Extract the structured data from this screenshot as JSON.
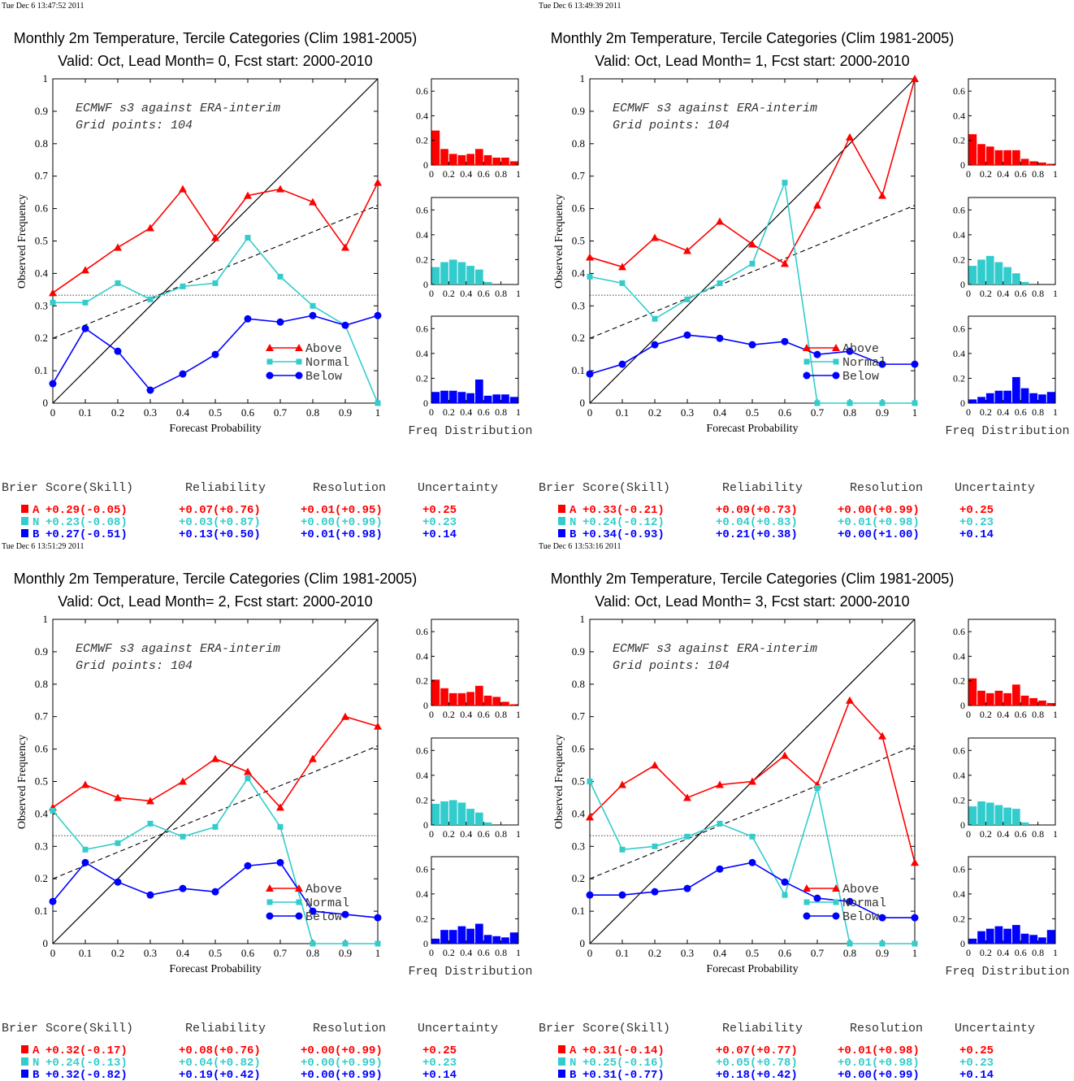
{
  "colors": {
    "above": "#ff0000",
    "normal": "#33cccc",
    "below": "#0000ff"
  },
  "common": {
    "xlabel": "Forecast Probability",
    "ylabel": "Observed Frequency",
    "note_line1": "ECMWF s3 against ERA-interim",
    "note_line2": "Grid points:  104",
    "freq_label": "Freq Distribution",
    "legend": [
      "Above",
      "Normal",
      "Below"
    ],
    "score_headers": [
      "Brier Score(Skill)",
      "Reliability",
      "Resolution",
      "Uncertainty"
    ],
    "reliability_ticks": [
      "0",
      "0.1",
      "0.2",
      "0.3",
      "0.4",
      "0.5",
      "0.6",
      "0.7",
      "0.8",
      "0.9",
      "1"
    ],
    "hist_yticks": [
      "0",
      "0.2",
      "0.4",
      "0.6"
    ],
    "hist_xticks": [
      "0",
      "0.2",
      "0.4",
      "0.6",
      "0.8",
      "1"
    ]
  },
  "panels": [
    {
      "timestamp": "Tue Dec  6 13:47:52 2011",
      "title1": "Monthly 2m Temperature, Tercile Categories (Clim 1981-2005)",
      "title2": "Valid: Oct, Lead Month= 0, Fcst start: 2000-2010",
      "scores": [
        {
          "cat": "A",
          "brier": "+0.29(-0.05)",
          "rel": "+0.07(+0.76)",
          "res": "+0.01(+0.95)",
          "unc": "+0.25"
        },
        {
          "cat": "N",
          "brier": "+0.23(-0.08)",
          "rel": "+0.03(+0.87)",
          "res": "+0.00(+0.99)",
          "unc": "+0.23"
        },
        {
          "cat": "B",
          "brier": "+0.27(-0.51)",
          "rel": "+0.13(+0.50)",
          "res": "+0.01(+0.98)",
          "unc": "+0.14"
        }
      ]
    },
    {
      "timestamp": "Tue Dec  6 13:49:39 2011",
      "title1": "Monthly 2m Temperature, Tercile Categories (Clim 1981-2005)",
      "title2": "Valid: Oct, Lead Month= 1, Fcst start: 2000-2010",
      "scores": [
        {
          "cat": "A",
          "brier": "+0.33(-0.21)",
          "rel": "+0.09(+0.73)",
          "res": "+0.00(+0.99)",
          "unc": "+0.25"
        },
        {
          "cat": "N",
          "brier": "+0.24(-0.12)",
          "rel": "+0.04(+0.83)",
          "res": "+0.01(+0.98)",
          "unc": "+0.23"
        },
        {
          "cat": "B",
          "brier": "+0.34(-0.93)",
          "rel": "+0.21(+0.38)",
          "res": "+0.00(+1.00)",
          "unc": "+0.14"
        }
      ]
    },
    {
      "timestamp": "Tue Dec  6 13:51:29 2011",
      "title1": "Monthly 2m Temperature, Tercile Categories (Clim 1981-2005)",
      "title2": "Valid: Oct, Lead Month= 2, Fcst start: 2000-2010",
      "scores": [
        {
          "cat": "A",
          "brier": "+0.32(-0.17)",
          "rel": "+0.08(+0.76)",
          "res": "+0.00(+0.99)",
          "unc": "+0.25"
        },
        {
          "cat": "N",
          "brier": "+0.24(-0.13)",
          "rel": "+0.04(+0.82)",
          "res": "+0.00(+0.99)",
          "unc": "+0.23"
        },
        {
          "cat": "B",
          "brier": "+0.32(-0.82)",
          "rel": "+0.19(+0.42)",
          "res": "+0.00(+0.99)",
          "unc": "+0.14"
        }
      ]
    },
    {
      "timestamp": "Tue Dec  6 13:53:16 2011",
      "title1": "Monthly 2m Temperature, Tercile Categories (Clim 1981-2005)",
      "title2": "Valid: Oct, Lead Month= 3, Fcst start: 2000-2010",
      "scores": [
        {
          "cat": "A",
          "brier": "+0.31(-0.14)",
          "rel": "+0.07(+0.77)",
          "res": "+0.01(+0.98)",
          "unc": "+0.25"
        },
        {
          "cat": "N",
          "brier": "+0.25(-0.16)",
          "rel": "+0.05(+0.78)",
          "res": "+0.01(+0.98)",
          "unc": "+0.23"
        },
        {
          "cat": "B",
          "brier": "+0.31(-0.77)",
          "rel": "+0.18(+0.42)",
          "res": "+0.00(+0.99)",
          "unc": "+0.14"
        }
      ]
    }
  ],
  "chart_data": [
    {
      "type": "line",
      "title": "Monthly 2m Temperature, Tercile Categories (Clim 1981-2005) / Valid: Oct, Lead Month= 0, Fcst start: 2000-2010",
      "xlabel": "Forecast Probability",
      "ylabel": "Observed Frequency",
      "xlim": [
        0,
        1
      ],
      "ylim": [
        0,
        1
      ],
      "x": [
        0,
        0.1,
        0.2,
        0.3,
        0.4,
        0.5,
        0.6,
        0.7,
        0.8,
        0.9,
        1.0
      ],
      "series": [
        {
          "name": "Above",
          "values": [
            0.34,
            0.41,
            0.48,
            0.54,
            0.66,
            0.51,
            0.64,
            0.66,
            0.62,
            0.48,
            0.68
          ]
        },
        {
          "name": "Normal",
          "values": [
            0.31,
            0.31,
            0.37,
            0.32,
            0.36,
            0.37,
            0.51,
            0.39,
            0.3,
            0.24,
            0.0
          ]
        },
        {
          "name": "Below",
          "values": [
            0.06,
            0.23,
            0.16,
            0.04,
            0.09,
            0.15,
            0.26,
            0.25,
            0.27,
            0.24,
            0.27
          ]
        }
      ],
      "climatology": 0.333,
      "skill_line": [
        [
          0,
          0.2
        ],
        [
          1,
          0.61
        ]
      ],
      "legend_position": "lower-right",
      "hist": {
        "xlim": [
          0,
          1
        ],
        "ylim": [
          0,
          0.7
        ],
        "above": [
          0.28,
          0.13,
          0.09,
          0.08,
          0.09,
          0.13,
          0.08,
          0.06,
          0.06,
          0.03
        ],
        "normal": [
          0.14,
          0.18,
          0.2,
          0.18,
          0.15,
          0.12,
          0.02,
          0.0,
          0.0,
          0.0
        ],
        "below": [
          0.09,
          0.1,
          0.1,
          0.09,
          0.08,
          0.19,
          0.06,
          0.07,
          0.07,
          0.05
        ]
      }
    },
    {
      "type": "line",
      "title": "Monthly 2m Temperature, Tercile Categories (Clim 1981-2005) / Valid: Oct, Lead Month= 1, Fcst start: 2000-2010",
      "xlabel": "Forecast Probability",
      "ylabel": "Observed Frequency",
      "xlim": [
        0,
        1
      ],
      "ylim": [
        0,
        1
      ],
      "x": [
        0,
        0.1,
        0.2,
        0.3,
        0.4,
        0.5,
        0.6,
        0.7,
        0.8,
        0.9,
        1.0
      ],
      "series": [
        {
          "name": "Above",
          "values": [
            0.45,
            0.42,
            0.51,
            0.47,
            0.56,
            0.49,
            0.43,
            0.61,
            0.82,
            0.64,
            1.0
          ]
        },
        {
          "name": "Normal",
          "values": [
            0.39,
            0.37,
            0.26,
            0.32,
            0.37,
            0.43,
            0.68,
            0.0,
            0.0,
            0.0,
            0.0
          ]
        },
        {
          "name": "Below",
          "values": [
            0.09,
            0.12,
            0.18,
            0.21,
            0.2,
            0.18,
            0.19,
            0.15,
            0.16,
            0.12,
            0.12
          ]
        }
      ],
      "climatology": 0.333,
      "skill_line": [
        [
          0,
          0.2
        ],
        [
          1,
          0.61
        ]
      ],
      "legend_position": "lower-right",
      "hist": {
        "xlim": [
          0,
          1
        ],
        "ylim": [
          0,
          0.7
        ],
        "above": [
          0.25,
          0.17,
          0.15,
          0.12,
          0.12,
          0.12,
          0.05,
          0.03,
          0.02,
          0.01
        ],
        "normal": [
          0.15,
          0.2,
          0.23,
          0.18,
          0.14,
          0.09,
          0.02,
          0.0,
          0.0,
          0.0
        ],
        "below": [
          0.03,
          0.05,
          0.08,
          0.1,
          0.1,
          0.21,
          0.12,
          0.08,
          0.07,
          0.09
        ]
      }
    },
    {
      "type": "line",
      "title": "Monthly 2m Temperature, Tercile Categories (Clim 1981-2005) / Valid: Oct, Lead Month= 2, Fcst start: 2000-2010",
      "xlabel": "Forecast Probability",
      "ylabel": "Observed Frequency",
      "xlim": [
        0,
        1
      ],
      "ylim": [
        0,
        1
      ],
      "x": [
        0,
        0.1,
        0.2,
        0.3,
        0.4,
        0.5,
        0.6,
        0.7,
        0.8,
        0.9,
        1.0
      ],
      "series": [
        {
          "name": "Above",
          "values": [
            0.42,
            0.49,
            0.45,
            0.44,
            0.5,
            0.57,
            0.53,
            0.42,
            0.57,
            0.7,
            0.67
          ]
        },
        {
          "name": "Normal",
          "values": [
            0.41,
            0.29,
            0.31,
            0.37,
            0.33,
            0.36,
            0.51,
            0.36,
            0.0,
            0.0,
            0.0
          ]
        },
        {
          "name": "Below",
          "values": [
            0.13,
            0.25,
            0.19,
            0.15,
            0.17,
            0.16,
            0.24,
            0.25,
            0.1,
            0.09,
            0.08
          ]
        }
      ],
      "climatology": 0.333,
      "skill_line": [
        [
          0,
          0.2
        ],
        [
          1,
          0.61
        ]
      ],
      "legend_position": "lower-right",
      "hist": {
        "xlim": [
          0,
          1
        ],
        "ylim": [
          0,
          0.7
        ],
        "above": [
          0.21,
          0.14,
          0.1,
          0.1,
          0.11,
          0.16,
          0.08,
          0.07,
          0.03,
          0.01
        ],
        "normal": [
          0.17,
          0.19,
          0.2,
          0.18,
          0.13,
          0.1,
          0.02,
          0.0,
          0.0,
          0.0
        ],
        "below": [
          0.04,
          0.11,
          0.11,
          0.14,
          0.12,
          0.16,
          0.07,
          0.06,
          0.05,
          0.09
        ]
      }
    },
    {
      "type": "line",
      "title": "Monthly 2m Temperature, Tercile Categories (Clim 1981-2005) / Valid: Oct, Lead Month= 3, Fcst start: 2000-2010",
      "xlabel": "Forecast Probability",
      "ylabel": "Observed Frequency",
      "xlim": [
        0,
        1
      ],
      "ylim": [
        0,
        1
      ],
      "x": [
        0,
        0.1,
        0.2,
        0.3,
        0.4,
        0.5,
        0.6,
        0.7,
        0.8,
        0.9,
        1.0
      ],
      "series": [
        {
          "name": "Above",
          "values": [
            0.39,
            0.49,
            0.55,
            0.45,
            0.49,
            0.5,
            0.58,
            0.49,
            0.75,
            0.64,
            0.25
          ]
        },
        {
          "name": "Normal",
          "values": [
            0.5,
            0.29,
            0.3,
            0.33,
            0.37,
            0.33,
            0.15,
            0.48,
            0.0,
            0.0,
            0.0
          ]
        },
        {
          "name": "Below",
          "values": [
            0.15,
            0.15,
            0.16,
            0.17,
            0.23,
            0.25,
            0.19,
            0.14,
            0.13,
            0.08,
            0.08
          ]
        }
      ],
      "climatology": 0.333,
      "skill_line": [
        [
          0,
          0.2
        ],
        [
          1,
          0.61
        ]
      ],
      "legend_position": "lower-right",
      "hist": {
        "xlim": [
          0,
          1
        ],
        "ylim": [
          0,
          0.7
        ],
        "above": [
          0.22,
          0.12,
          0.1,
          0.12,
          0.1,
          0.17,
          0.08,
          0.06,
          0.04,
          0.02
        ],
        "normal": [
          0.15,
          0.19,
          0.18,
          0.16,
          0.14,
          0.13,
          0.02,
          0.0,
          0.0,
          0.0
        ],
        "below": [
          0.04,
          0.1,
          0.12,
          0.14,
          0.12,
          0.15,
          0.08,
          0.07,
          0.05,
          0.11
        ]
      }
    }
  ]
}
